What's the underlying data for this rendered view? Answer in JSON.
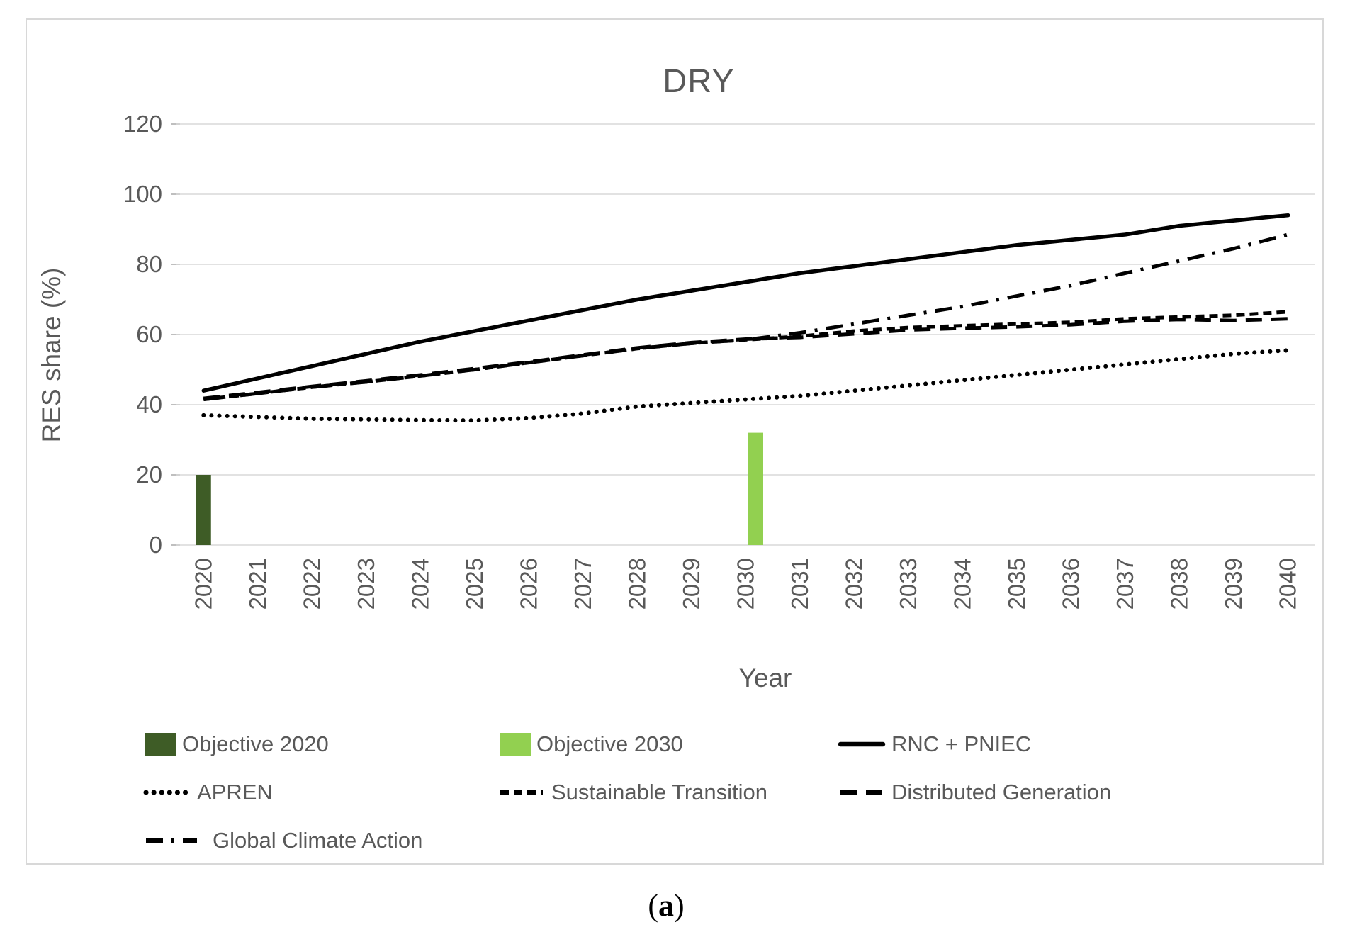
{
  "title": "DRY",
  "axes": {
    "y_label": "RES share (%)",
    "x_label": "Year"
  },
  "caption": {
    "open": "(",
    "letter": "a",
    "close": ")"
  },
  "colors": {
    "objective_2020": "#3E5C26",
    "objective_2030": "#92D050",
    "line": "#000000",
    "text": "#595959",
    "grid": "#D9D9D9"
  },
  "chart_data": {
    "type": "line+bar",
    "title": "DRY",
    "xlabel": "Year",
    "ylabel": "RES share (%)",
    "ylim": [
      0,
      120
    ],
    "y_ticks": [
      0,
      20,
      40,
      60,
      80,
      100,
      120
    ],
    "x": [
      2020,
      2021,
      2022,
      2023,
      2024,
      2025,
      2026,
      2027,
      2028,
      2029,
      2030,
      2031,
      2032,
      2033,
      2034,
      2035,
      2036,
      2037,
      2038,
      2039,
      2040
    ],
    "bars": [
      {
        "name": "Objective 2020",
        "year": 2020,
        "value": 20,
        "color": "#3E5C26"
      },
      {
        "name": "Objective 2030",
        "year": 2030,
        "value": 32,
        "color": "#92D050"
      }
    ],
    "series": [
      {
        "name": "RNC + PNIEC",
        "style": "solid",
        "values": [
          44,
          47.5,
          51,
          54.5,
          58,
          61,
          64,
          67,
          70,
          72.5,
          75,
          77.5,
          79.5,
          81.5,
          83.5,
          85.5,
          87,
          88.5,
          91,
          92.5,
          94
        ]
      },
      {
        "name": "APREN",
        "style": "dotted",
        "values": [
          37,
          36.5,
          36,
          35.8,
          35.6,
          35.5,
          36.2,
          37.5,
          39.5,
          40.5,
          41.5,
          42.5,
          44,
          45.5,
          47,
          48.5,
          50,
          51.5,
          53,
          54.5,
          55.5
        ]
      },
      {
        "name": "Sustainable Transition",
        "style": "short-dash",
        "values": [
          41.5,
          43.2,
          45,
          46.5,
          48.2,
          50,
          52,
          54,
          56,
          57.5,
          58.5,
          59.5,
          61,
          62,
          62.5,
          63,
          63.5,
          64.5,
          65,
          65.5,
          66.5
        ]
      },
      {
        "name": "Distributed Generation",
        "style": "long-dash",
        "values": [
          41.8,
          43.5,
          45.2,
          46.8,
          48.5,
          50.3,
          52.2,
          54.2,
          56.2,
          57.7,
          58.7,
          59.2,
          60.2,
          61.3,
          61.8,
          62.2,
          62.8,
          63.8,
          64.3,
          64,
          64.5
        ]
      },
      {
        "name": "Global Climate Action",
        "style": "dash-dot",
        "values": [
          41.5,
          43.2,
          45,
          46.5,
          48.2,
          50,
          52,
          54,
          56,
          57.5,
          58.5,
          60.5,
          63,
          65.5,
          68,
          71,
          74,
          77.5,
          81,
          84.5,
          88.5
        ]
      }
    ],
    "legend": [
      {
        "label": "Objective 2020",
        "marker": "square",
        "color": "#3E5C26"
      },
      {
        "label": "Objective 2030",
        "marker": "square",
        "color": "#92D050"
      },
      {
        "label": "RNC + PNIEC",
        "marker": "solid"
      },
      {
        "label": "APREN",
        "marker": "dotted"
      },
      {
        "label": "Sustainable Transition",
        "marker": "short-dash"
      },
      {
        "label": "Distributed Generation",
        "marker": "long-dash"
      },
      {
        "label": "Global Climate Action",
        "marker": "dash-dot"
      }
    ],
    "legend_position": "bottom",
    "grid": true
  }
}
